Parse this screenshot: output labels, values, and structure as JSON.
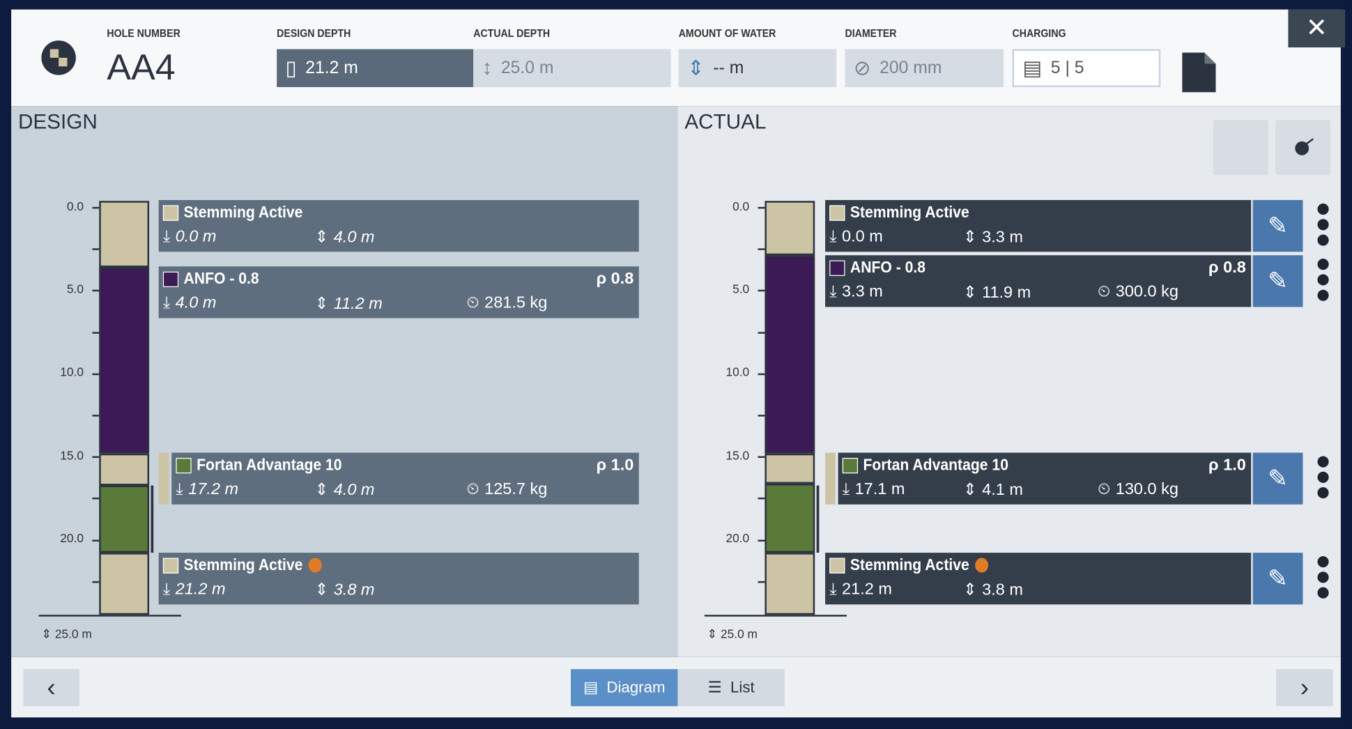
{
  "header": {
    "hole_number_label": "HOLE NUMBER",
    "hole_number": "AA4",
    "fields": [
      {
        "label": "DESIGN DEPTH",
        "value": "21.2 m"
      },
      {
        "label": "ACTUAL DEPTH",
        "value": "25.0 m"
      },
      {
        "label": "AMOUNT OF WATER",
        "value": "-- m"
      },
      {
        "label": "DIAMETER",
        "value": "200 mm"
      },
      {
        "label": "CHARGING",
        "value": "5 | 5"
      }
    ]
  },
  "design": {
    "title": "DESIGN",
    "scale": [
      "0.0",
      "5.0",
      "10.0",
      "15.0",
      "20.0"
    ],
    "bottom": "25.0 m",
    "decks": [
      {
        "name": "Stemming Active",
        "color": "#cdc4a5",
        "top": "0.0 m",
        "length": "4.0 m"
      },
      {
        "name": "ANFO - 0.8",
        "color": "#3b1a55",
        "density": "ρ 0.8",
        "top": "4.0 m",
        "length": "11.2 m",
        "weight": "281.5 kg"
      },
      {
        "name": "Fortan Advantage 10",
        "color": "#5a7a3a",
        "density": "ρ 1.0",
        "top": "17.2 m",
        "length": "4.0 m",
        "weight": "125.7 kg"
      },
      {
        "name": "Stemming Active",
        "color": "#cdc4a5",
        "top": "21.2 m",
        "length": "3.8 m"
      }
    ]
  },
  "actual": {
    "title": "ACTUAL",
    "scale": [
      "0.0",
      "5.0",
      "10.0",
      "15.0",
      "20.0"
    ],
    "bottom": "25.0 m",
    "decks": [
      {
        "name": "Stemming Active",
        "color": "#cdc4a5",
        "top": "0.0 m",
        "length": "3.3 m"
      },
      {
        "name": "ANFO - 0.8",
        "color": "#3b1a55",
        "density": "ρ 0.8",
        "top": "3.3 m",
        "length": "11.9 m",
        "weight": "300.0 kg"
      },
      {
        "name": "Fortan Advantage 10",
        "color": "#5a7a3a",
        "density": "ρ 1.0",
        "top": "17.1 m",
        "length": "4.1 m",
        "weight": "130.0 kg"
      },
      {
        "name": "Stemming Active",
        "color": "#cdc4a5",
        "top": "21.2 m",
        "length": "3.8 m"
      }
    ]
  },
  "footer": {
    "tabs": [
      "Diagram",
      "List"
    ]
  }
}
